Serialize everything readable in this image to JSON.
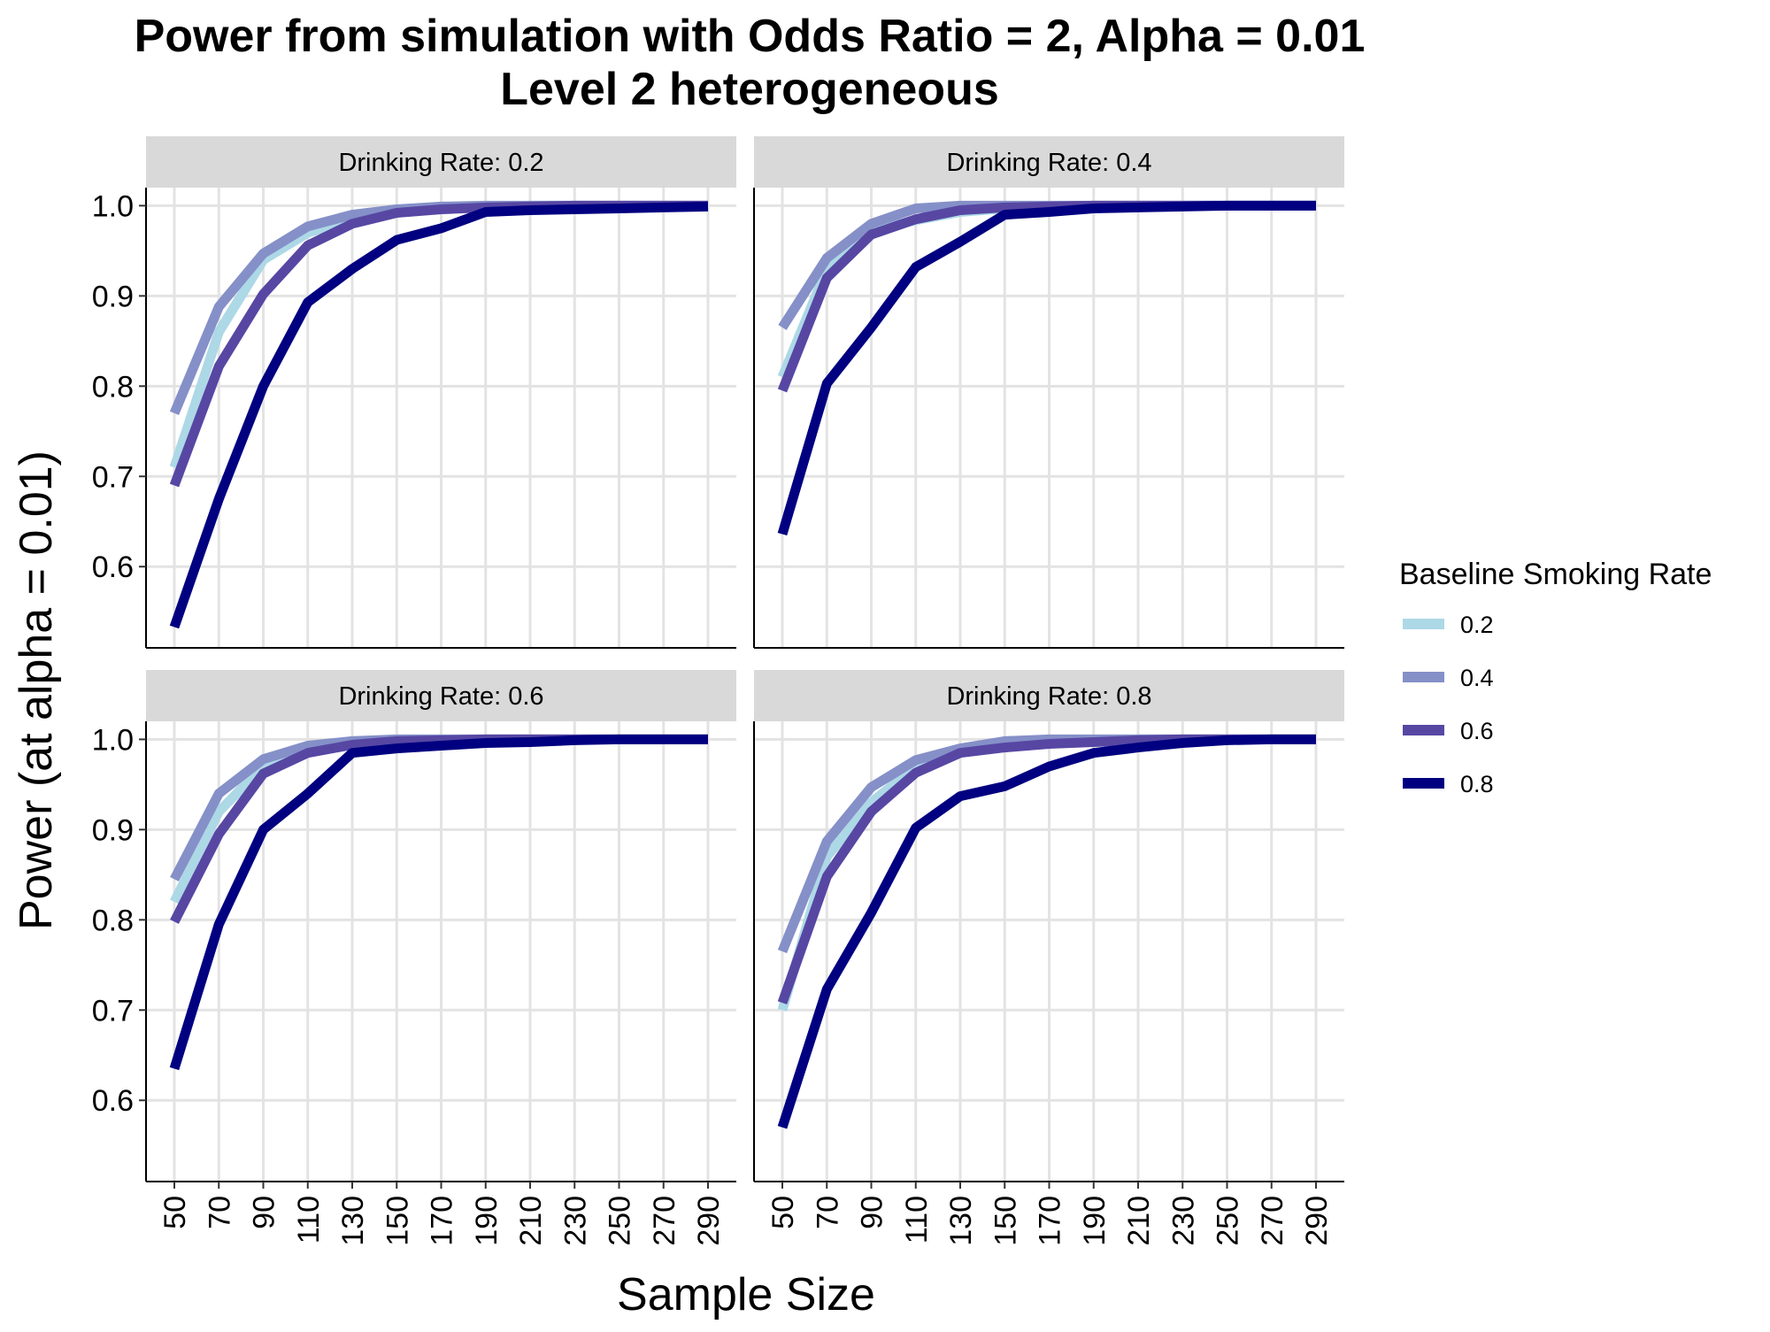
{
  "chart_data": {
    "type": "line",
    "title": "Power from simulation with Odds Ratio = 2, Alpha = 0.01",
    "subtitle": "Level 2 heterogeneous",
    "xlabel": "Sample Size",
    "ylabel": "Power (at alpha = 0.01)",
    "legend_title": "Baseline Smoking Rate",
    "legend_position": "right",
    "grid": true,
    "ylim": [
      0.51,
      1.02
    ],
    "y_ticks": [
      0.6,
      0.7,
      0.8,
      0.9,
      1.0
    ],
    "y_tick_labels": [
      "0.6",
      "0.7",
      "0.8",
      "0.9",
      "1.0"
    ],
    "x": [
      50,
      70,
      90,
      110,
      130,
      150,
      170,
      190,
      210,
      230,
      250,
      270,
      290
    ],
    "x_tick_labels": [
      "50",
      "70",
      "90",
      "110",
      "130",
      "150",
      "170",
      "190",
      "210",
      "230",
      "250",
      "270",
      "290"
    ],
    "series_colors": [
      "#add8e6",
      "#8590c8",
      "#5747a3",
      "#000080"
    ],
    "legend_entries": [
      "0.2",
      "0.4",
      "0.6",
      "0.8"
    ],
    "panels": [
      {
        "label": "Drinking Rate:  0.2",
        "series": [
          {
            "name": "0.2",
            "values": [
              0.71,
              0.86,
              0.94,
              0.97,
              0.985,
              0.993,
              0.997,
              0.999,
              1.0,
              1.0,
              1.0,
              1.0,
              1.0
            ]
          },
          {
            "name": "0.4",
            "values": [
              0.77,
              0.888,
              0.947,
              0.977,
              0.99,
              0.996,
              0.999,
              1.0,
              1.0,
              1.0,
              1.0,
              1.0,
              1.0
            ]
          },
          {
            "name": "0.6",
            "values": [
              0.69,
              0.822,
              0.902,
              0.956,
              0.98,
              0.992,
              0.996,
              0.998,
              0.999,
              1.0,
              1.0,
              1.0,
              1.0
            ]
          },
          {
            "name": "0.8",
            "values": [
              0.533,
              0.675,
              0.8,
              0.893,
              0.93,
              0.962,
              0.975,
              0.993,
              0.995,
              0.996,
              0.997,
              0.998,
              0.999
            ]
          }
        ]
      },
      {
        "label": "Drinking Rate:  0.4",
        "series": [
          {
            "name": "0.2",
            "values": [
              0.81,
              0.93,
              0.972,
              0.984,
              0.993,
              0.997,
              0.999,
              1.0,
              1.0,
              1.0,
              1.0,
              1.0,
              1.0
            ]
          },
          {
            "name": "0.4",
            "values": [
              0.865,
              0.942,
              0.98,
              0.997,
              1.0,
              1.0,
              1.0,
              1.0,
              1.0,
              1.0,
              1.0,
              1.0,
              1.0
            ]
          },
          {
            "name": "0.6",
            "values": [
              0.795,
              0.92,
              0.968,
              0.985,
              0.995,
              0.998,
              0.999,
              1.0,
              1.0,
              1.0,
              1.0,
              1.0,
              1.0
            ]
          },
          {
            "name": "0.8",
            "values": [
              0.636,
              0.803,
              0.865,
              0.932,
              0.96,
              0.99,
              0.993,
              0.997,
              0.998,
              0.999,
              1.0,
              1.0,
              1.0
            ]
          }
        ]
      },
      {
        "label": "Drinking Rate:  0.6",
        "series": [
          {
            "name": "0.2",
            "values": [
              0.82,
              0.92,
              0.97,
              0.99,
              0.996,
              0.998,
              0.999,
              1.0,
              1.0,
              1.0,
              1.0,
              1.0,
              1.0
            ]
          },
          {
            "name": "0.4",
            "values": [
              0.845,
              0.94,
              0.978,
              0.993,
              0.998,
              1.0,
              1.0,
              1.0,
              1.0,
              1.0,
              1.0,
              1.0,
              1.0
            ]
          },
          {
            "name": "0.6",
            "values": [
              0.798,
              0.895,
              0.962,
              0.985,
              0.994,
              0.998,
              0.999,
              1.0,
              1.0,
              1.0,
              1.0,
              1.0,
              1.0
            ]
          },
          {
            "name": "0.8",
            "values": [
              0.635,
              0.795,
              0.9,
              0.94,
              0.985,
              0.99,
              0.993,
              0.996,
              0.997,
              0.999,
              1.0,
              1.0,
              1.0
            ]
          }
        ]
      },
      {
        "label": "Drinking Rate:  0.8",
        "series": [
          {
            "name": "0.2",
            "values": [
              0.7,
              0.87,
              0.93,
              0.97,
              0.987,
              0.995,
              0.998,
              0.999,
              1.0,
              1.0,
              1.0,
              1.0,
              1.0
            ]
          },
          {
            "name": "0.4",
            "values": [
              0.765,
              0.887,
              0.947,
              0.977,
              0.99,
              0.998,
              1.0,
              1.0,
              1.0,
              1.0,
              1.0,
              1.0,
              1.0
            ]
          },
          {
            "name": "0.6",
            "values": [
              0.708,
              0.848,
              0.92,
              0.963,
              0.985,
              0.991,
              0.995,
              0.997,
              0.999,
              1.0,
              1.0,
              1.0,
              1.0
            ]
          },
          {
            "name": "0.8",
            "values": [
              0.57,
              0.723,
              0.808,
              0.902,
              0.937,
              0.948,
              0.97,
              0.985,
              0.991,
              0.996,
              0.999,
              1.0,
              1.0
            ]
          }
        ]
      }
    ]
  }
}
